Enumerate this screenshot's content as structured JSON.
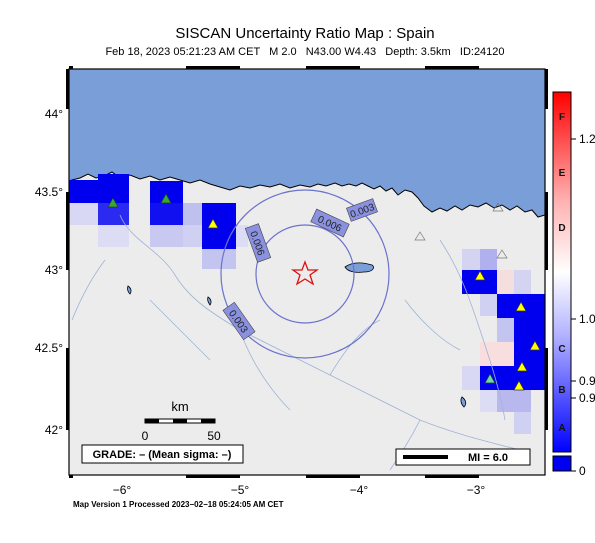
{
  "header": {
    "title": "SISCAN Uncertainty Ratio Map : Spain",
    "subtitle": "Feb 18, 2023 05:21:23 AM CET   M 2.0   N43.00 W4.43   Depth: 3.5km   ID:24120"
  },
  "map": {
    "lat_ticks": [
      "44°",
      "43.5°",
      "43°",
      "42.5°",
      "42°"
    ],
    "lon_ticks": [
      "−6°",
      "−5°",
      "−4°",
      "−3°"
    ],
    "contour_labels": [
      "0.006",
      "0.006",
      "0.003",
      "0.003"
    ],
    "scale_unit": "km",
    "scale_min": "0",
    "scale_max": "50",
    "grade_text": "GRADE: – (Mean sigma: –)",
    "mi_text": "MI = 6.0",
    "colors": {
      "sea": "#7a9fd8",
      "land": "#ececec",
      "station_blue": "#0000ee",
      "epicenter": "#dd1111",
      "contour": "#6b72cc"
    },
    "icons": [
      "epicenter-star-icon",
      "station-triangle-icon"
    ]
  },
  "colorbar": {
    "letters": [
      "F",
      "E",
      "D",
      "C",
      "B",
      "A"
    ],
    "values": [
      "1.2",
      "1.0",
      "0.9",
      "0.9"
    ],
    "zero_label": "0"
  },
  "footer": {
    "text": "Map Version 1 Processed 2023−02−18 05:24:05 AM CET"
  }
}
